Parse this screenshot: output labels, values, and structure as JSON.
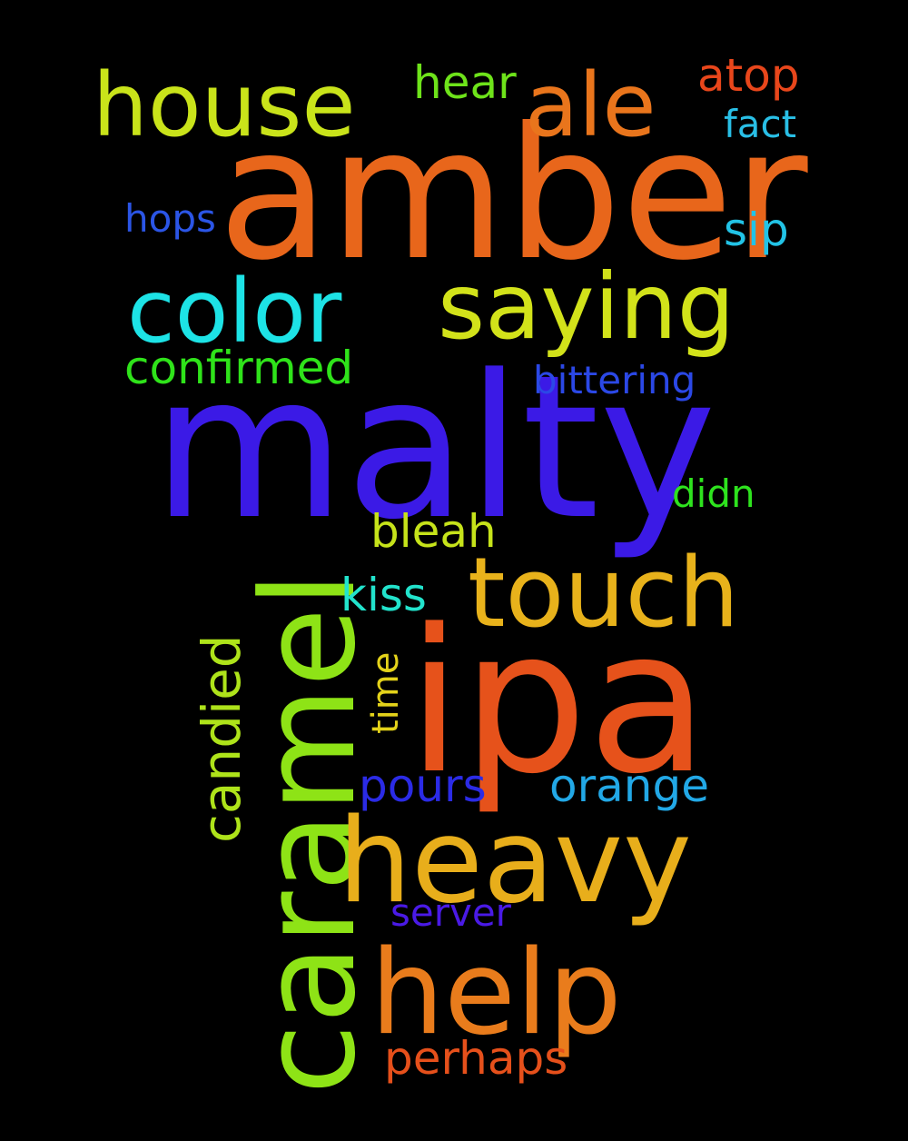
{
  "words": {
    "malty": {
      "text": "malty",
      "color": "#3b1ae6"
    },
    "amber": {
      "text": "amber",
      "color": "#e8661b"
    },
    "ipa": {
      "text": "ipa",
      "color": "#e6521b"
    },
    "caramel": {
      "text": "caramel",
      "color": "#8ee316"
    },
    "heavy": {
      "text": "heavy",
      "color": "#e8ae1b"
    },
    "help": {
      "text": "help",
      "color": "#e97c1c"
    },
    "touch": {
      "text": "touch",
      "color": "#e8b21b"
    },
    "saying": {
      "text": "saying",
      "color": "#d2e21a"
    },
    "color": {
      "text": "color",
      "color": "#1de3e6"
    },
    "house": {
      "text": "house",
      "color": "#c9e31a"
    },
    "ale": {
      "text": "ale",
      "color": "#e9751c"
    },
    "candied": {
      "text": "candied",
      "color": "#aee31a"
    },
    "confirmed": {
      "text": "confirmed",
      "color": "#2fe31a"
    },
    "hear": {
      "text": "hear",
      "color": "#6ee31a"
    },
    "atop": {
      "text": "atop",
      "color": "#e8461b"
    },
    "fact": {
      "text": "fact",
      "color": "#29bfe6"
    },
    "sip": {
      "text": "sip",
      "color": "#22c3e6"
    },
    "hops": {
      "text": "hops",
      "color": "#2b55e6"
    },
    "bittering": {
      "text": "bittering",
      "color": "#2b48e6"
    },
    "didn": {
      "text": "didn",
      "color": "#2ee31e"
    },
    "bleah": {
      "text": "bleah",
      "color": "#c6e31a"
    },
    "kiss": {
      "text": "kiss",
      "color": "#22e3cc"
    },
    "time": {
      "text": "time",
      "color": "#e3d21a"
    },
    "pours": {
      "text": "pours",
      "color": "#2b2be6"
    },
    "orange": {
      "text": "orange",
      "color": "#22a8e6"
    },
    "server": {
      "text": "server",
      "color": "#4a1ae6"
    },
    "perhaps": {
      "text": "perhaps",
      "color": "#e6501b"
    }
  }
}
